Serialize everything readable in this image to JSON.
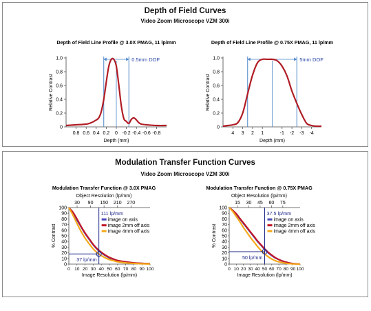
{
  "dof": {
    "title": "Depth of Field Curves",
    "subtitle": "Video Zoom Microscope VZM 300i",
    "charts": [
      {
        "title": "Depth of Field Line Profile @ 3.0X PMAG, 11 lp/mm",
        "annotation": "0.5mm DOF"
      },
      {
        "title": "Depth of Field Line Profile @ 0.75X PMAG, 11 lp/mm",
        "annotation": "5mm DOF"
      }
    ]
  },
  "mtf": {
    "title": "Modulation Transfer Function Curves",
    "subtitle": "Video Zoom Microscope VZM 300i",
    "charts": [
      {
        "title": "Modulation Transfer Function @ 3.0X PMAG",
        "top_label": "Object Resolution (lp/mm)",
        "marker_top": "111 lp/mm",
        "marker_bottom": "37 lp/mm"
      },
      {
        "title": "Modulation Transfer Function @ 0.75X PMAG",
        "top_label": "Object Resolution (lp/mm)",
        "marker_top": "37.5 lp/mm",
        "marker_bottom": "50 lp/mm"
      }
    ]
  },
  "colors": {
    "dof_curve": "#b01c24",
    "guide_line": "#4a86c8",
    "axis_on": "#4a4ab8",
    "off_2mm": "#c0182a",
    "off_4mm": "#f5a81a",
    "marker": "#1f2a8a"
  },
  "chart_data": [
    {
      "type": "line",
      "title": "Depth of Field Line Profile @ 3.0X PMAG, 11 lp/mm",
      "xlabel": "Depth (mm)",
      "ylabel": "Relative Contrast",
      "xlim": [
        1.0,
        -1.0
      ],
      "ylim": [
        0,
        1.0
      ],
      "x_ticks": [
        0.8,
        0.6,
        0.4,
        0.2,
        0,
        -0.2,
        -0.4,
        -0.6,
        -0.8
      ],
      "x_tick_labels": [
        "0.8",
        "0.6",
        "0.4",
        "0.2",
        "0",
        "-0.2",
        "-0.4",
        "-0.6",
        "-0.8"
      ],
      "y_ticks": [
        0,
        0.2,
        0.4,
        0.6,
        0.8,
        1.0
      ],
      "y_tick_labels": [
        "0",
        "0.2",
        "0.4",
        "0.6",
        "0.8",
        "1.0"
      ],
      "dof_lines": [
        0.25,
        -0.25
      ],
      "series": [
        {
          "x": [
            1.0,
            0.8,
            0.6,
            0.5,
            0.4,
            0.35,
            0.3,
            0.25,
            0.2,
            0.15,
            0.1,
            0.05,
            0,
            -0.05,
            -0.1,
            -0.15,
            -0.2,
            -0.25,
            -0.3,
            -0.35,
            -0.4,
            -0.45,
            -0.5,
            -0.6,
            -0.8,
            -1.0
          ],
          "y": [
            0.02,
            0.03,
            0.04,
            0.06,
            0.1,
            0.13,
            0.22,
            0.4,
            0.65,
            0.88,
            0.98,
            0.98,
            0.88,
            0.6,
            0.3,
            0.12,
            0.08,
            0.05,
            0.11,
            0.13,
            0.1,
            0.06,
            0.04,
            0.03,
            0.02,
            0.02
          ]
        }
      ]
    },
    {
      "type": "line",
      "title": "Depth of Field Line Profile @ 0.75X PMAG, 11 lp/mm",
      "xlabel": "Depth (mm)",
      "ylabel": "Relative Contrast",
      "xlim": [
        5,
        -5
      ],
      "ylim": [
        0,
        1.0
      ],
      "x_ticks": [
        4,
        3,
        2,
        1,
        -1,
        -2,
        -3,
        -4
      ],
      "x_tick_labels": [
        "4",
        "3",
        "2",
        "1",
        "-1",
        "-2",
        "-3",
        "-4"
      ],
      "y_ticks": [
        0,
        0.2,
        0.4,
        0.6,
        0.8,
        1.0
      ],
      "y_tick_labels": [
        "0",
        "0.2",
        "0.4",
        "0.6",
        "0.8",
        "1.0"
      ],
      "dof_lines": [
        2.5,
        -2.5
      ],
      "series": [
        {
          "x": [
            5,
            4.5,
            4,
            3.5,
            3,
            2.5,
            2,
            1.5,
            1,
            0.5,
            0,
            -0.5,
            -1,
            -1.5,
            -2,
            -2.5,
            -3,
            -3.5,
            -4,
            -4.5,
            -5
          ],
          "y": [
            0.01,
            0.02,
            0.03,
            0.06,
            0.2,
            0.48,
            0.75,
            0.93,
            0.98,
            0.98,
            0.98,
            0.96,
            0.88,
            0.74,
            0.52,
            0.34,
            0.18,
            0.05,
            0.02,
            0.01,
            0.01
          ]
        }
      ]
    },
    {
      "type": "line",
      "title": "Modulation Transfer Function @ 3.0X PMAG",
      "xlabel": "Image Resolution (lp/mm)",
      "ylabel": "% Contrast",
      "x2label": "Object Resolution (lp/mm)",
      "xlim": [
        0,
        100
      ],
      "ylim": [
        0,
        100
      ],
      "x_ticks": [
        0,
        10,
        20,
        30,
        40,
        50,
        60,
        70,
        80,
        90,
        100
      ],
      "y_ticks": [
        0,
        10,
        20,
        30,
        40,
        50,
        60,
        70,
        80,
        90,
        100
      ],
      "x2_ticks": [
        30,
        90,
        150,
        210,
        270
      ],
      "x2_tick_labels": [
        "30",
        "90",
        "150",
        "210",
        "270"
      ],
      "marker": {
        "x": 37,
        "y": 18
      },
      "legend": [
        "image on axis",
        "image 2mm off axis",
        "image 4mm off axis"
      ],
      "series": [
        {
          "name": "image on axis",
          "x": [
            0,
            5,
            10,
            15,
            20,
            25,
            30,
            35,
            40,
            45,
            50,
            55,
            60,
            65,
            70,
            80,
            90,
            100
          ],
          "y": [
            100,
            90,
            78,
            66,
            54,
            44,
            34,
            26,
            20,
            15,
            11,
            8,
            6,
            4.5,
            3.5,
            2,
            1.2,
            0.6
          ]
        },
        {
          "name": "image 2mm off axis",
          "x": [
            0,
            5,
            10,
            15,
            20,
            25,
            30,
            35,
            40,
            45,
            50,
            55,
            60,
            65,
            70,
            80,
            90,
            100
          ],
          "y": [
            100,
            92,
            80,
            67,
            55,
            45,
            35,
            27,
            21,
            16,
            12,
            9,
            6.5,
            5,
            4,
            2.2,
            1.3,
            0.6
          ]
        },
        {
          "name": "image 4mm off axis",
          "x": [
            0,
            5,
            10,
            15,
            20,
            25,
            30,
            35,
            40,
            45,
            50,
            55,
            60,
            65,
            70,
            80,
            90,
            100
          ],
          "y": [
            100,
            87,
            72,
            58,
            46,
            36,
            27,
            20,
            15,
            11,
            8,
            6,
            4,
            3,
            2.2,
            1.2,
            0.6,
            0.3
          ]
        }
      ]
    },
    {
      "type": "line",
      "title": "Modulation Transfer Function @ 0.75X PMAG",
      "xlabel": "Image Resolution (lp/mm)",
      "ylabel": "% Contrast",
      "x2label": "Object Resolution (lp/mm)",
      "xlim": [
        0,
        100
      ],
      "ylim": [
        0,
        100
      ],
      "x_ticks": [
        0,
        10,
        20,
        30,
        40,
        50,
        60,
        70,
        80,
        90,
        100
      ],
      "y_ticks": [
        0,
        10,
        20,
        30,
        40,
        50,
        60,
        70,
        80,
        90,
        100
      ],
      "x2_ticks": [
        15,
        30,
        45,
        60,
        75
      ],
      "x2_tick_labels": [
        "15",
        "30",
        "45",
        "60",
        "75"
      ],
      "marker": {
        "x": 50,
        "y": 22
      },
      "legend": [
        "image on axis",
        "image 2mm off axis",
        "image 4mm off axis"
      ],
      "series": [
        {
          "name": "image on axis",
          "x": [
            0,
            5,
            10,
            15,
            20,
            25,
            30,
            35,
            40,
            45,
            50,
            55,
            60,
            65,
            70,
            75,
            80,
            85,
            90,
            95,
            100
          ],
          "y": [
            100,
            95,
            88,
            80,
            72,
            64,
            56,
            48,
            40,
            33,
            26,
            20,
            15,
            11,
            8,
            5.5,
            3.5,
            2,
            1,
            0.5,
            0
          ]
        },
        {
          "name": "image 2mm off axis",
          "x": [
            0,
            5,
            10,
            15,
            20,
            25,
            30,
            35,
            40,
            45,
            50,
            55,
            60,
            65,
            70,
            75,
            80,
            85,
            90,
            95,
            100
          ],
          "y": [
            100,
            95,
            89,
            81,
            73,
            65,
            57,
            49,
            41,
            34,
            27,
            21,
            16,
            11.5,
            8,
            5.5,
            3.5,
            2,
            1,
            0.5,
            0
          ]
        },
        {
          "name": "image 4mm off axis",
          "x": [
            0,
            5,
            10,
            15,
            20,
            25,
            30,
            35,
            40,
            45,
            50,
            55,
            60,
            65,
            70,
            75,
            80,
            85,
            90,
            95,
            100
          ],
          "y": [
            100,
            93,
            84,
            75,
            65,
            56,
            47,
            39,
            31,
            24,
            18,
            13,
            9,
            6,
            4,
            2.5,
            1.5,
            0.8,
            0.4,
            0.2,
            0
          ]
        }
      ]
    }
  ]
}
